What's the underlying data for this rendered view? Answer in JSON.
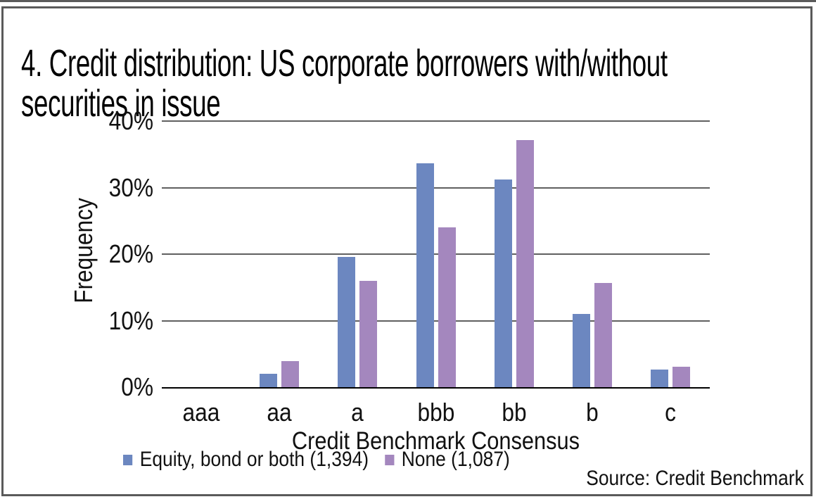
{
  "title": "4. Credit distribution: US corporate borrowers with/without securities in issue",
  "chart_data": {
    "type": "bar",
    "title": "4. Credit distribution: US corporate borrowers with/without securities in issue",
    "categories": [
      "aaa",
      "aa",
      "a",
      "bbb",
      "bb",
      "b",
      "c"
    ],
    "series": [
      {
        "name": "Equity, bond or both (1,394)",
        "color": "#6c87c0",
        "values": [
          0,
          2.0,
          19.6,
          33.7,
          31.2,
          11.0,
          2.7
        ]
      },
      {
        "name": "None (1,087)",
        "color": "#a487be",
        "values": [
          0,
          3.9,
          16.0,
          24.0,
          37.1,
          15.7,
          3.1
        ]
      }
    ],
    "xlabel": "Credit Benchmark Consensus",
    "ylabel": "Frequency",
    "ylim": [
      0,
      40
    ],
    "yticks": {
      "values": [
        0,
        10,
        20,
        30,
        40
      ],
      "labels": [
        "0%",
        "10%",
        "20%",
        "30%",
        "40%"
      ]
    },
    "grid": true,
    "legend_position": "bottom",
    "source": "Source: Credit Benchmark",
    "colors": {
      "gridline": "#606060",
      "axis": "#000000",
      "frame": "#5a5a5a"
    }
  }
}
